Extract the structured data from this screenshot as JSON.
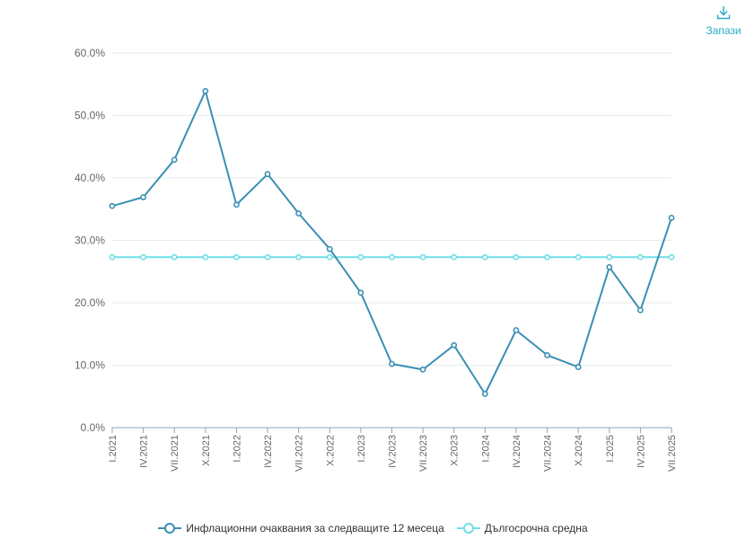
{
  "toolbar": {
    "save_label": "Запази",
    "save_icon": "download-icon"
  },
  "chart_data": {
    "type": "line",
    "categories": [
      "I.2021",
      "IV.2021",
      "VII.2021",
      "X.2021",
      "I.2022",
      "IV.2022",
      "VII.2022",
      "X.2022",
      "I.2023",
      "IV.2023",
      "VII.2023",
      "X.2023",
      "I.2024",
      "IV.2024",
      "VII.2024",
      "X.2024",
      "I.2025",
      "IV.2025",
      "VII.2025"
    ],
    "y_ticks": [
      "0.0%",
      "10.0%",
      "20.0%",
      "30.0%",
      "40.0%",
      "50.0%",
      "60.0%"
    ],
    "ylim": [
      0,
      60
    ],
    "grid": true,
    "legend_placement": "bottom-center",
    "series": [
      {
        "name": "Инфлационни очаквания за следващите 12 месеца",
        "color": "#3a8fb5",
        "values": [
          35.5,
          36.9,
          42.9,
          53.9,
          35.7,
          40.6,
          34.3,
          28.6,
          21.6,
          10.2,
          9.3,
          13.2,
          5.4,
          15.6,
          11.6,
          9.7,
          25.7,
          18.8,
          33.6
        ]
      },
      {
        "name": "Дългосрочна средна",
        "color": "#6fdfe6",
        "values": [
          27.3,
          27.3,
          27.3,
          27.3,
          27.3,
          27.3,
          27.3,
          27.3,
          27.3,
          27.3,
          27.3,
          27.3,
          27.3,
          27.3,
          27.3,
          27.3,
          27.3,
          27.3,
          27.3
        ]
      }
    ]
  }
}
